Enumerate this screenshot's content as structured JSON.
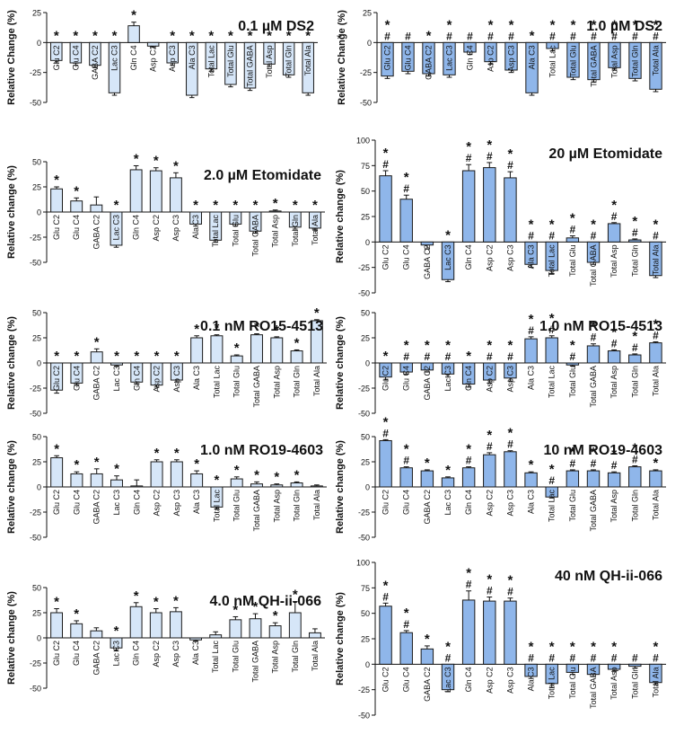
{
  "figure": {
    "stray_mark": "*",
    "bar_colors": {
      "light": "#d6e6f8",
      "dark": "#8fb6ea",
      "edge": "#1a1a1a"
    },
    "text_color": "#111111"
  },
  "chart_data": [
    {
      "type": "bar",
      "title": "0.1 µM DS2",
      "ylabel": "Relative Change (%)",
      "ylim": [
        -50,
        25
      ],
      "yticks": [
        "25",
        "0",
        "-25",
        "-50"
      ],
      "yticks_values": [
        25,
        0,
        -25,
        -50
      ],
      "categories": [
        "Glu C2",
        "Glu C4",
        "GABA C2",
        "Lac C3",
        "Gln C4",
        "Asp C2",
        "Asp C3",
        "Ala C3",
        "Total Lac",
        "Total Glu",
        "Total GABA",
        "Total Asp",
        "Total Gln",
        "Total Ala"
      ],
      "values": [
        -15,
        -17,
        -19,
        -42,
        14,
        -3,
        -17,
        -44,
        -22,
        -35,
        -38,
        -18,
        -27,
        -42
      ],
      "errors": [
        2,
        2,
        2,
        2,
        3,
        1,
        2,
        2,
        2,
        2,
        2,
        2,
        2,
        2
      ],
      "labels_above": [
        "*",
        "*",
        "*",
        "*",
        "*",
        "",
        "*",
        "*",
        "*",
        "*",
        "*",
        "*",
        "*",
        "*"
      ],
      "labels_below": [
        "",
        "",
        "",
        "",
        "",
        "",
        "",
        "",
        "",
        "",
        "",
        "",
        "",
        ""
      ],
      "color": "light"
    },
    {
      "type": "bar",
      "title": "1.0 µM DS2",
      "ylabel": "Relative Change (%)",
      "ylim": [
        -50,
        25
      ],
      "yticks": [
        "25",
        "0",
        "-25",
        "-50"
      ],
      "yticks_values": [
        25,
        0,
        -25,
        -50
      ],
      "categories": [
        "Glu C2",
        "Glu C4",
        "GABA C2",
        "Lac C3",
        "Gln C4",
        "Asp C2",
        "Asp C3",
        "Ala C3",
        "Total Lac",
        "Total Glu",
        "Total GABA",
        "Total Asp",
        "Total Gln",
        "Total Ala"
      ],
      "values": [
        -28,
        -24,
        -26,
        -27,
        -8,
        -16,
        -23,
        -42,
        -5,
        -29,
        -31,
        -21,
        -30,
        -39
      ],
      "errors": [
        2,
        2,
        2,
        2,
        2,
        2,
        2,
        2,
        2,
        2,
        2,
        2,
        2,
        2
      ],
      "labels_above": [
        "*\n#",
        "#",
        "*",
        "*\n#",
        "#",
        "*\n#",
        "*\n#",
        "*",
        "*\n#",
        "*\n#",
        "*\n#",
        "*\n#",
        "*\n#",
        "*\n#"
      ],
      "labels_below": [
        "",
        "",
        "",
        "",
        "",
        "",
        "",
        "",
        "",
        "",
        "",
        "",
        "",
        ""
      ],
      "color": "dark"
    },
    {
      "type": "bar",
      "title": "2.0 µM Etomidate",
      "ylabel": "Relative change (%)",
      "ylim": [
        -50,
        50
      ],
      "yticks": [
        "50",
        "25",
        "0",
        "-25",
        "-50"
      ],
      "yticks_values": [
        50,
        25,
        0,
        -25,
        -50
      ],
      "categories": [
        "Glu C2",
        "Glu C4",
        "GABA C2",
        "Lac C3",
        "Gln C4",
        "Asp C2",
        "Asp C3",
        "Ala C3",
        "Total Lac",
        "Total Glu",
        "Total GABA",
        "Total Asp",
        "Total Gln",
        "Total Ala"
      ],
      "values": [
        23,
        11,
        7,
        -33,
        42,
        41,
        34,
        -12,
        -28,
        -12,
        -19,
        1,
        -15,
        -16
      ],
      "errors": [
        2,
        3,
        8,
        2,
        4,
        3,
        5,
        2,
        2,
        2,
        2,
        1,
        2,
        2
      ],
      "labels_above": [
        "*",
        "*",
        "",
        "*",
        "*",
        "*",
        "*",
        "*",
        "*",
        "*",
        "*",
        "*",
        "*",
        "*"
      ],
      "labels_below": [
        "",
        "",
        "",
        "",
        "",
        "",
        "",
        "",
        "",
        "",
        "",
        "",
        "",
        ""
      ],
      "color": "light"
    },
    {
      "type": "bar",
      "title": "20 µM Etomidate",
      "ylabel": "Relative change (%)",
      "ylim": [
        -50,
        100
      ],
      "yticks": [
        "100",
        "75",
        "50",
        "25",
        "0",
        "-25",
        "-50"
      ],
      "yticks_values": [
        100,
        75,
        50,
        25,
        0,
        -25,
        -50
      ],
      "categories": [
        "Glu C2",
        "Glu C4",
        "GABA C2",
        "Lac C3",
        "Gln C4",
        "Asp C2",
        "Asp C3",
        "Ala C3",
        "Total Lac",
        "Total Glu",
        "Total GABA",
        "Total Asp",
        "Total Gln",
        "Total Ala"
      ],
      "values": [
        65,
        42,
        -3,
        -37,
        70,
        73,
        63,
        -22,
        -28,
        4,
        -20,
        18,
        2,
        -33
      ],
      "errors": [
        5,
        4,
        4,
        2,
        6,
        5,
        6,
        3,
        3,
        2,
        2,
        1,
        1,
        2
      ],
      "labels_above": [
        "*\n#",
        "*\n#",
        "",
        "*",
        "*\n#",
        "*\n#",
        "*\n#",
        "*\n#",
        "*\n#",
        "*\n#",
        "*\n#",
        "*\n#",
        "*\n#",
        "*\n#"
      ],
      "labels_below": [
        "",
        "",
        "",
        "",
        "",
        "",
        "",
        "",
        "",
        "",
        "",
        "",
        "",
        ""
      ],
      "color": "dark"
    },
    {
      "type": "bar",
      "title": "0.1 nM RO15-4513",
      "ylabel": "Relative change (%)",
      "ylim": [
        -50,
        50
      ],
      "yticks": [
        "50",
        "25",
        "0",
        "-25",
        "-50"
      ],
      "yticks_values": [
        50,
        25,
        0,
        -25,
        -50
      ],
      "categories": [
        "Glu C2",
        "Glu C4",
        "GABA C2",
        "Lac C3",
        "Gln C4",
        "Asp C2",
        "Asp C3",
        "Ala C3",
        "Total Lac",
        "Total Glu",
        "Total GABA",
        "Total Asp",
        "Total Gln",
        "Total Ala"
      ],
      "values": [
        -27,
        -20,
        11,
        -2,
        -19,
        -22,
        -17,
        25,
        27,
        7,
        28,
        25,
        12,
        42
      ],
      "errors": [
        3,
        2,
        3,
        1,
        2,
        2,
        2,
        2,
        1,
        1,
        1,
        1,
        1,
        1
      ],
      "labels_above": [
        "*",
        "*",
        "*",
        "*",
        "*",
        "*",
        "*",
        "*",
        "*",
        "*",
        "*",
        "*",
        "*",
        "*"
      ],
      "labels_below": [
        "",
        "",
        "",
        "",
        "",
        "",
        "",
        "",
        "",
        "",
        "",
        "",
        "",
        ""
      ],
      "color": "light"
    },
    {
      "type": "bar",
      "title": "1.0 nM RO15-4513",
      "ylabel": "Relative change (%)",
      "ylim": [
        -50,
        50
      ],
      "yticks": [
        "50",
        "25",
        "0",
        "-25",
        "-50"
      ],
      "yticks_values": [
        50,
        25,
        0,
        -25,
        -50
      ],
      "categories": [
        "Glu C2",
        "Glu C4",
        "GABA C2",
        "Lac C3",
        "Gln C4",
        "Asp C2",
        "Asp C3",
        "Ala C3",
        "Total Lac",
        "Total Glu",
        "Total GABA",
        "Total Asp",
        "Total Gln",
        "Total Ala"
      ],
      "values": [
        -14,
        -9,
        -7,
        -11,
        -21,
        -17,
        -15,
        24,
        25,
        -2,
        17,
        12,
        8,
        20
      ],
      "errors": [
        3,
        2,
        2,
        3,
        3,
        3,
        3,
        2,
        2,
        1,
        2,
        1,
        1,
        1
      ],
      "labels_above": [
        "*",
        "*\n#",
        "*\n#",
        "*\n#",
        "*",
        "*\n#",
        "*\n#",
        "*\n#",
        "*\n#",
        "*\n#",
        "*\n#",
        "*\n#",
        "*\n#",
        "*\n#"
      ],
      "labels_below": [
        "",
        "",
        "",
        "",
        "",
        "",
        "",
        "",
        "",
        "",
        "",
        "",
        "",
        ""
      ],
      "color": "dark"
    },
    {
      "type": "bar",
      "title": "1.0 nM RO19-4603",
      "ylabel": "Relative change (%)",
      "ylim": [
        -50,
        50
      ],
      "yticks": [
        "50",
        "25",
        "0",
        "-25",
        "-50"
      ],
      "yticks_values": [
        50,
        25,
        0,
        -25,
        -50
      ],
      "categories": [
        "Glu C2",
        "Glu C4",
        "GABA C2",
        "Lac C3",
        "Gln C4",
        "Asp C2",
        "Asp C3",
        "Ala C3",
        "Total Lac",
        "Total Glu",
        "Total GABA",
        "Total Asp",
        "Total Gln",
        "Total Ala"
      ],
      "values": [
        29,
        13,
        13,
        7,
        1,
        25,
        25,
        13,
        -20,
        8,
        3,
        2,
        4,
        1
      ],
      "errors": [
        2,
        2,
        5,
        4,
        6,
        2,
        2,
        3,
        2,
        2,
        2,
        1,
        1,
        1
      ],
      "labels_above": [
        "*",
        "*",
        "*",
        "*",
        "",
        "*",
        "*",
        "*",
        "*",
        "*",
        "*",
        "*",
        "*",
        ""
      ],
      "labels_below": [
        "",
        "",
        "",
        "",
        "",
        "",
        "",
        "",
        "",
        "",
        "",
        "",
        "",
        ""
      ],
      "color": "light"
    },
    {
      "type": "bar",
      "title": "10 nM RO19-4603",
      "ylabel": "Relative change (%)",
      "ylim": [
        -50,
        50
      ],
      "yticks": [
        "50",
        "25",
        "0",
        "-25",
        "-50"
      ],
      "yticks_values": [
        50,
        25,
        0,
        -25,
        -50
      ],
      "categories": [
        "Glu C2",
        "Glu C4",
        "GABA C2",
        "Lac C3",
        "Gln C4",
        "Asp C2",
        "Asp C3",
        "Ala C3",
        "Total Lac",
        "Total Glu",
        "Total GABA",
        "Total Asp",
        "Total Gln",
        "Total Ala"
      ],
      "values": [
        46,
        19,
        16,
        9,
        19,
        32,
        35,
        14,
        -10,
        16,
        16,
        14,
        20,
        16
      ],
      "errors": [
        1,
        1,
        1,
        1,
        1,
        2,
        1,
        1,
        1,
        1,
        1,
        1,
        1,
        1
      ],
      "labels_above": [
        "*\n#",
        "*\n#",
        "*",
        "*",
        "*\n#",
        "*\n#",
        "*\n#",
        "*",
        "*\n#",
        "*\n#",
        "*\n#",
        "*\n#",
        "*\n#",
        "*"
      ],
      "labels_below": [
        "",
        "",
        "",
        "",
        "",
        "",
        "",
        "",
        "",
        "",
        "",
        "",
        "",
        ""
      ],
      "color": "dark"
    },
    {
      "type": "bar",
      "title": "4.0 nM QH-ii-066",
      "ylabel": "Relative change (%)",
      "ylim": [
        -50,
        50
      ],
      "yticks": [
        "50",
        "25",
        "0",
        "-25",
        "-50"
      ],
      "yticks_values": [
        50,
        25,
        0,
        -25,
        -50
      ],
      "categories": [
        "Glu C2",
        "Glu C4",
        "GABA C2",
        "Lac C3",
        "Gln C4",
        "Asp C2",
        "Asp C3",
        "Ala C3",
        "Total Lac",
        "Total Glu",
        "Total GABA",
        "Total Asp",
        "Total Gln",
        "Total Ala"
      ],
      "values": [
        25,
        14,
        7,
        -10,
        31,
        25,
        26,
        -2,
        3,
        18,
        19,
        12,
        25,
        5
      ],
      "errors": [
        4,
        3,
        3,
        3,
        4,
        4,
        4,
        1,
        3,
        3,
        5,
        3,
        11,
        4
      ],
      "labels_above": [
        "*",
        "*",
        "",
        "*",
        "*",
        "*",
        "*",
        "",
        "",
        "*",
        "*",
        "*",
        "*",
        ""
      ],
      "labels_below": [
        "",
        "",
        "",
        "",
        "",
        "",
        "",
        "",
        "",
        "",
        "",
        "",
        "",
        ""
      ],
      "color": "light"
    },
    {
      "type": "bar",
      "title": "40 nM QH-ii-066",
      "ylabel": "Relative change (%)",
      "ylim": [
        -50,
        100
      ],
      "yticks": [
        "100",
        "75",
        "50",
        "25",
        "0",
        "-25",
        "-50"
      ],
      "yticks_values": [
        100,
        75,
        50,
        25,
        0,
        -25,
        -50
      ],
      "categories": [
        "Glu C2",
        "Glu C4",
        "GABA C2",
        "Lac C3",
        "Gln C4",
        "Asp C2",
        "Asp C3",
        "Ala C3",
        "Total Lac",
        "Total Glu",
        "Total GABA",
        "Total Asp",
        "Total Gln",
        "Total Ala"
      ],
      "values": [
        57,
        31,
        15,
        -25,
        63,
        62,
        62,
        -12,
        -19,
        -8,
        -10,
        -5,
        -2,
        -18
      ],
      "errors": [
        3,
        2,
        3,
        2,
        9,
        4,
        3,
        2,
        4,
        2,
        2,
        2,
        2,
        2
      ],
      "labels_above": [
        "*\n#",
        "*\n#",
        "*",
        "*\n#",
        "*\n#",
        "*\n#",
        "*\n#",
        "*\n#",
        "*\n#",
        "*\n#",
        "*\n#",
        "*\n#",
        "#",
        "*\n#"
      ],
      "labels_below": [
        "",
        "",
        "",
        "",
        "",
        "",
        "",
        "",
        "",
        "",
        "",
        "",
        "",
        ""
      ],
      "color": "dark"
    }
  ]
}
